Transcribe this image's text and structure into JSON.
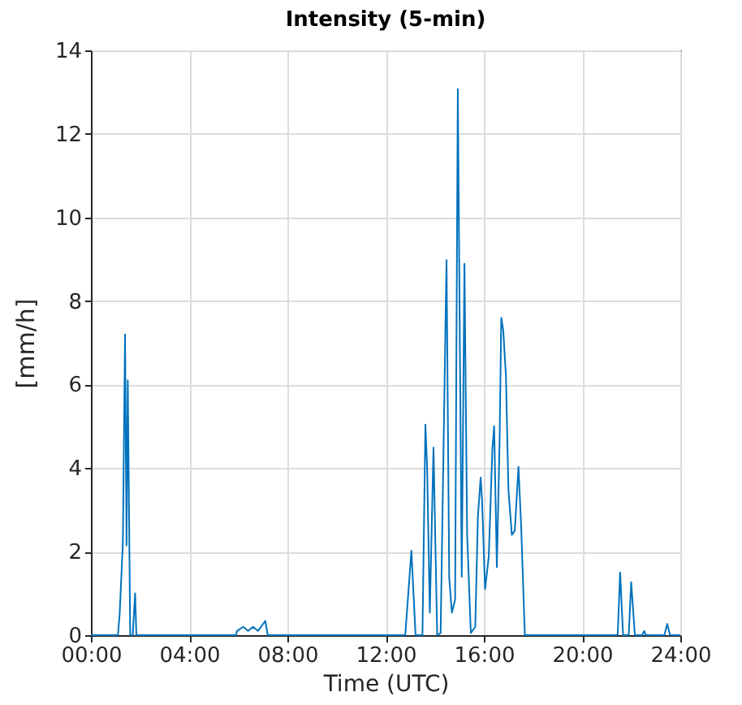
{
  "chart_data": {
    "type": "line",
    "title": "Intensity (5-min)",
    "xlabel": "Time (UTC)",
    "ylabel": "[mm/h]",
    "x": [
      0,
      1.1,
      1.17,
      1.3,
      1.39,
      1.45,
      1.5,
      1.6,
      1.7,
      1.8,
      1.85,
      1.9,
      5.9,
      5.95,
      6.2,
      6.4,
      6.6,
      6.8,
      7.1,
      7.2,
      12.8,
      13.05,
      13.22,
      13.5,
      13.62,
      13.69,
      13.8,
      13.95,
      14.1,
      14.24,
      14.48,
      14.59,
      14.7,
      14.83,
      14.94,
      15.1,
      15.21,
      15.32,
      15.47,
      15.65,
      15.76,
      15.87,
      15.93,
      16.05,
      16.2,
      16.35,
      16.42,
      16.53,
      16.64,
      16.71,
      16.79,
      16.9,
      17.0,
      17.14,
      17.26,
      17.41,
      17.52,
      17.67,
      21.45,
      21.55,
      21.67,
      21.9,
      22.0,
      22.15,
      22.45,
      22.53,
      22.6,
      23.35,
      23.47,
      23.58,
      24
    ],
    "series": [
      {
        "color": "#0072bd",
        "values": [
          0,
          0,
          0.5,
          2.2,
          7.2,
          2.15,
          6.1,
          0,
          0,
          1,
          0,
          0,
          0,
          0.1,
          0.2,
          0.1,
          0.2,
          0.1,
          0.34,
          0,
          0,
          2.02,
          0,
          0,
          5.04,
          4.03,
          0.54,
          4.49,
          0,
          0.05,
          8.98,
          1.37,
          0.54,
          0.85,
          13.07,
          1.4,
          8.89,
          2.41,
          0.05,
          0.2,
          2.86,
          3.77,
          3.2,
          1.1,
          1.88,
          4.49,
          5,
          1.63,
          4.6,
          7.6,
          7.3,
          6.2,
          3.5,
          2.4,
          2.5,
          4.03,
          2.6,
          0,
          0,
          1.5,
          0,
          0,
          1.27,
          0,
          0,
          0.1,
          0,
          0,
          0.27,
          0,
          0
        ]
      }
    ],
    "xlim": [
      0,
      24
    ],
    "xticks": [
      {
        "value": 0,
        "label": "00:00"
      },
      {
        "value": 4,
        "label": "04:00"
      },
      {
        "value": 8,
        "label": "08:00"
      },
      {
        "value": 12,
        "label": "12:00"
      },
      {
        "value": 16,
        "label": "16:00"
      },
      {
        "value": 20,
        "label": "20:00"
      },
      {
        "value": 24,
        "label": "24:00"
      }
    ],
    "ylim": [
      0,
      14
    ],
    "yticks": [
      0,
      2,
      4,
      6,
      8,
      10,
      12,
      14
    ],
    "grid": true,
    "line_style": "solid",
    "marker": "none"
  }
}
